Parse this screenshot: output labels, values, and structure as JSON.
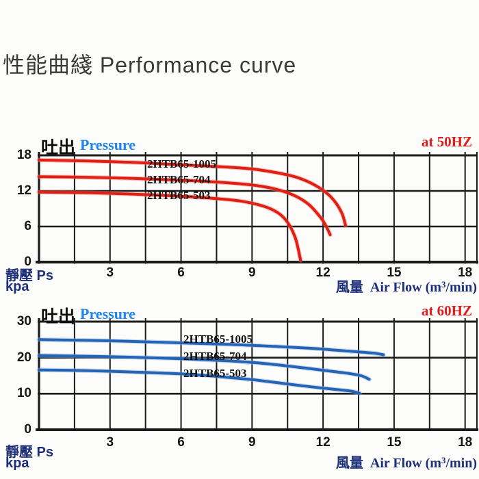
{
  "page": {
    "title": "性能曲綫 Performance curve"
  },
  "colors": {
    "grid": "#1b1b1b",
    "red_curve": "#dd1f16",
    "red_halo": "#f2836c",
    "blue_curve": "#2563b4",
    "blue_halo": "#8fb3dc",
    "pressure_blue": "#1e86f0",
    "freq_red": "#df1d1d",
    "axis_label_navy": "#1d2f78",
    "text_dark": "#161616",
    "title_gray": "#3a3a3a"
  },
  "chart_data": [
    {
      "type": "line",
      "id": "50hz",
      "pressure_label_cjk": "吐出",
      "pressure_label_en": "Pressure",
      "freq_label": "at 50HZ",
      "ylabel": {
        "line1": "靜壓 Ps",
        "line2": "kpa"
      },
      "xlabel": {
        "cjk": "風量",
        "pre": "Air Flow (m",
        "sup": "3",
        "post": "/min)"
      },
      "x_ticks": [
        3,
        6,
        9,
        12,
        15,
        18
      ],
      "y_ticks": [
        0,
        6,
        12,
        18
      ],
      "y_gridlines": [
        6,
        12,
        18
      ],
      "x_range": [
        0,
        18.5
      ],
      "y_range": [
        0,
        18
      ],
      "x_grid_step": 1.5,
      "grid": true,
      "curve_color": "#dd1f16",
      "halo_color": "#f2836c",
      "series": [
        {
          "name": "2HTB65-1005",
          "points": [
            [
              0,
              17.2
            ],
            [
              2,
              17.05
            ],
            [
              4,
              16.8
            ],
            [
              6,
              16.4
            ],
            [
              8,
              16.0
            ],
            [
              9,
              15.7
            ],
            [
              10,
              15.1
            ],
            [
              10.8,
              14.4
            ],
            [
              11.5,
              13.3
            ],
            [
              12.1,
              11.8
            ],
            [
              12.5,
              10.2
            ],
            [
              12.8,
              8.2
            ],
            [
              12.95,
              6.2
            ]
          ]
        },
        {
          "name": "2HTB65-704",
          "points": [
            [
              0,
              14.4
            ],
            [
              2,
              14.3
            ],
            [
              4,
              14.1
            ],
            [
              6,
              13.8
            ],
            [
              7.5,
              13.5
            ],
            [
              9,
              13.0
            ],
            [
              10,
              12.3
            ],
            [
              10.8,
              11.2
            ],
            [
              11.4,
              9.7
            ],
            [
              11.9,
              7.5
            ],
            [
              12.15,
              5.9
            ],
            [
              12.3,
              4.6
            ]
          ]
        },
        {
          "name": "2HTB65-503",
          "points": [
            [
              0,
              11.8
            ],
            [
              2,
              11.7
            ],
            [
              4,
              11.45
            ],
            [
              6,
              11.1
            ],
            [
              7.5,
              10.7
            ],
            [
              8.5,
              10.3
            ],
            [
              9.5,
              9.4
            ],
            [
              10.1,
              8.3
            ],
            [
              10.5,
              6.7
            ],
            [
              10.8,
              4.4
            ],
            [
              10.95,
              2.2
            ],
            [
              11.05,
              0.3
            ]
          ]
        }
      ]
    },
    {
      "type": "line",
      "id": "60hz",
      "pressure_label_cjk": "吐出",
      "pressure_label_en": "Pressure",
      "freq_label": "at 60HZ",
      "ylabel": {
        "line1": "靜壓 Ps",
        "line2": "kpa"
      },
      "xlabel": {
        "cjk": "風量",
        "pre": "Air Flow (m",
        "sup": "3",
        "post": "/min)"
      },
      "x_ticks": [
        3,
        6,
        9,
        12,
        15,
        18
      ],
      "y_ticks": [
        0,
        10,
        20,
        30
      ],
      "y_gridlines": [
        10,
        20,
        30
      ],
      "x_range": [
        0,
        18.5
      ],
      "y_range": [
        0,
        30
      ],
      "x_grid_step": 1.5,
      "grid": true,
      "curve_color": "#2563b4",
      "halo_color": "#8fb3dc",
      "series": [
        {
          "name": "2HTB65-1005",
          "points": [
            [
              0,
              25.0
            ],
            [
              2,
              24.8
            ],
            [
              4,
              24.5
            ],
            [
              6,
              24.1
            ],
            [
              8,
              23.7
            ],
            [
              10,
              23.1
            ],
            [
              11.5,
              22.6
            ],
            [
              12.5,
              22.1
            ],
            [
              13.5,
              21.6
            ],
            [
              14.2,
              21.2
            ],
            [
              14.55,
              20.8
            ]
          ]
        },
        {
          "name": "2HTB65-704",
          "points": [
            [
              0,
              20.6
            ],
            [
              2,
              20.4
            ],
            [
              4,
              20.1
            ],
            [
              6,
              19.7
            ],
            [
              8,
              19.1
            ],
            [
              9.5,
              18.4
            ],
            [
              11,
              17.3
            ],
            [
              12,
              16.5
            ],
            [
              13,
              15.7
            ],
            [
              13.6,
              15.0
            ],
            [
              13.95,
              14.0
            ]
          ]
        },
        {
          "name": "2HTB65-503",
          "points": [
            [
              0,
              16.6
            ],
            [
              2,
              16.4
            ],
            [
              4,
              16.0
            ],
            [
              6,
              15.5
            ],
            [
              7.5,
              14.8
            ],
            [
              9,
              13.9
            ],
            [
              10.5,
              12.7
            ],
            [
              11.5,
              11.9
            ],
            [
              12.5,
              11.2
            ],
            [
              13.2,
              10.7
            ],
            [
              13.55,
              10.1
            ]
          ]
        }
      ]
    }
  ]
}
